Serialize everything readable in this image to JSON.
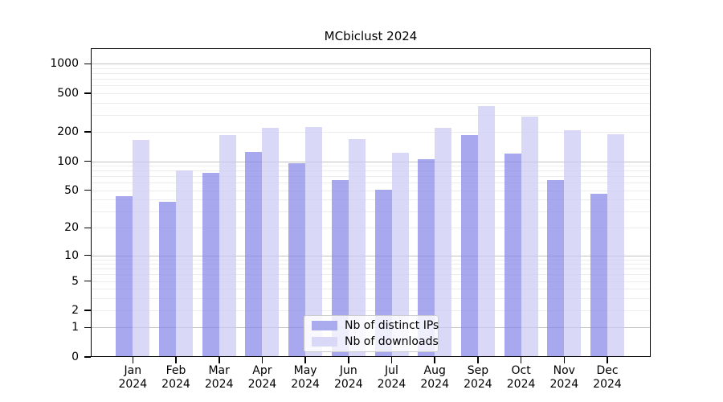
{
  "chart_data": {
    "type": "bar",
    "title": "MCbiclust 2024",
    "categories": [
      "Jan",
      "Feb",
      "Mar",
      "Apr",
      "May",
      "Jun",
      "Jul",
      "Aug",
      "Sep",
      "Oct",
      "Nov",
      "Dec"
    ],
    "category_year": "2024",
    "series": [
      {
        "name": "Nb of distinct IPs",
        "color": "#8787e8",
        "legend_color": "#aaaaee",
        "values": [
          43,
          38,
          76,
          124,
          96,
          64,
          51,
          104,
          185,
          119,
          64,
          46
        ]
      },
      {
        "name": "Nb of downloads",
        "color": "#cacaf4",
        "legend_color": "#d9d9f7",
        "values": [
          165,
          80,
          186,
          220,
          225,
          170,
          122,
          220,
          370,
          290,
          210,
          190
        ]
      }
    ],
    "y_axis": {
      "scale": "log10(1+v)",
      "ticks": [
        0,
        1,
        2,
        5,
        10,
        20,
        50,
        100,
        200,
        500,
        1000
      ],
      "major_gridlines": [
        1,
        10,
        100,
        1000
      ],
      "minor_gridline_bases": [
        2,
        3,
        4,
        5,
        6,
        7,
        8,
        9
      ],
      "minor_gridline_decades": [
        1,
        10,
        100
      ],
      "ylim_max": 1500
    },
    "xlabel": "",
    "ylabel": "",
    "grid": true,
    "legend_position": "lower center"
  },
  "colors": {
    "axis": "#000000",
    "grid_major": "#c2c2c2",
    "grid_minor": "#ececec",
    "background": "#ffffff",
    "legend_border": "#cccccc"
  }
}
